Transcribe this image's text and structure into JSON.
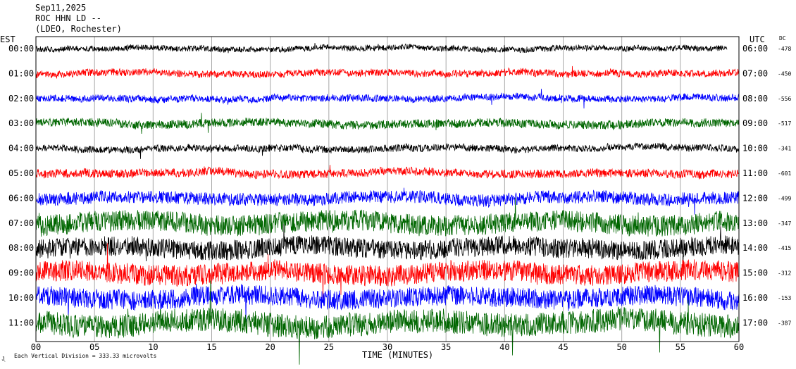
{
  "header": {
    "date": "Sep11,2025",
    "station": "ROC HHN LD --",
    "network": "(LDEO, Rochester)"
  },
  "footer": {
    "scale_note": "Each Vertical Division =  333.33 microvolts",
    "mark": "Jͅ"
  },
  "chart_data": {
    "type": "line",
    "title": "",
    "xlabel": "TIME (MINUTES)",
    "ylabel_left": "EST",
    "ylabel_right": "UTC",
    "dc_header": "DC",
    "xlim": [
      0,
      60
    ],
    "x_ticks": [
      "00",
      "05",
      "10",
      "15",
      "20",
      "25",
      "30",
      "35",
      "40",
      "45",
      "50",
      "55",
      "60"
    ],
    "grid": true,
    "colors": [
      "#000000",
      "#ff0000",
      "#0000ff",
      "#006600"
    ],
    "traces": [
      {
        "est": "00:00",
        "utc": "06:00",
        "dc": "-478",
        "end_minute": 59
      },
      {
        "est": "01:00",
        "utc": "07:00",
        "dc": "-450"
      },
      {
        "est": "02:00",
        "utc": "08:00",
        "dc": "-556"
      },
      {
        "est": "03:00",
        "utc": "09:00",
        "dc": "-517"
      },
      {
        "est": "04:00",
        "utc": "10:00",
        "dc": "-341"
      },
      {
        "est": "05:00",
        "utc": "11:00",
        "dc": "-601"
      },
      {
        "est": "06:00",
        "utc": "12:00",
        "dc": "-499"
      },
      {
        "est": "07:00",
        "utc": "13:00",
        "dc": "-347"
      },
      {
        "est": "08:00",
        "utc": "14:00",
        "dc": "-415"
      },
      {
        "est": "09:00",
        "utc": "15:00",
        "dc": "-312"
      },
      {
        "est": "10:00",
        "utc": "16:00",
        "dc": "-153"
      },
      {
        "est": "11:00",
        "utc": "17:00",
        "dc": "-387"
      }
    ]
  }
}
